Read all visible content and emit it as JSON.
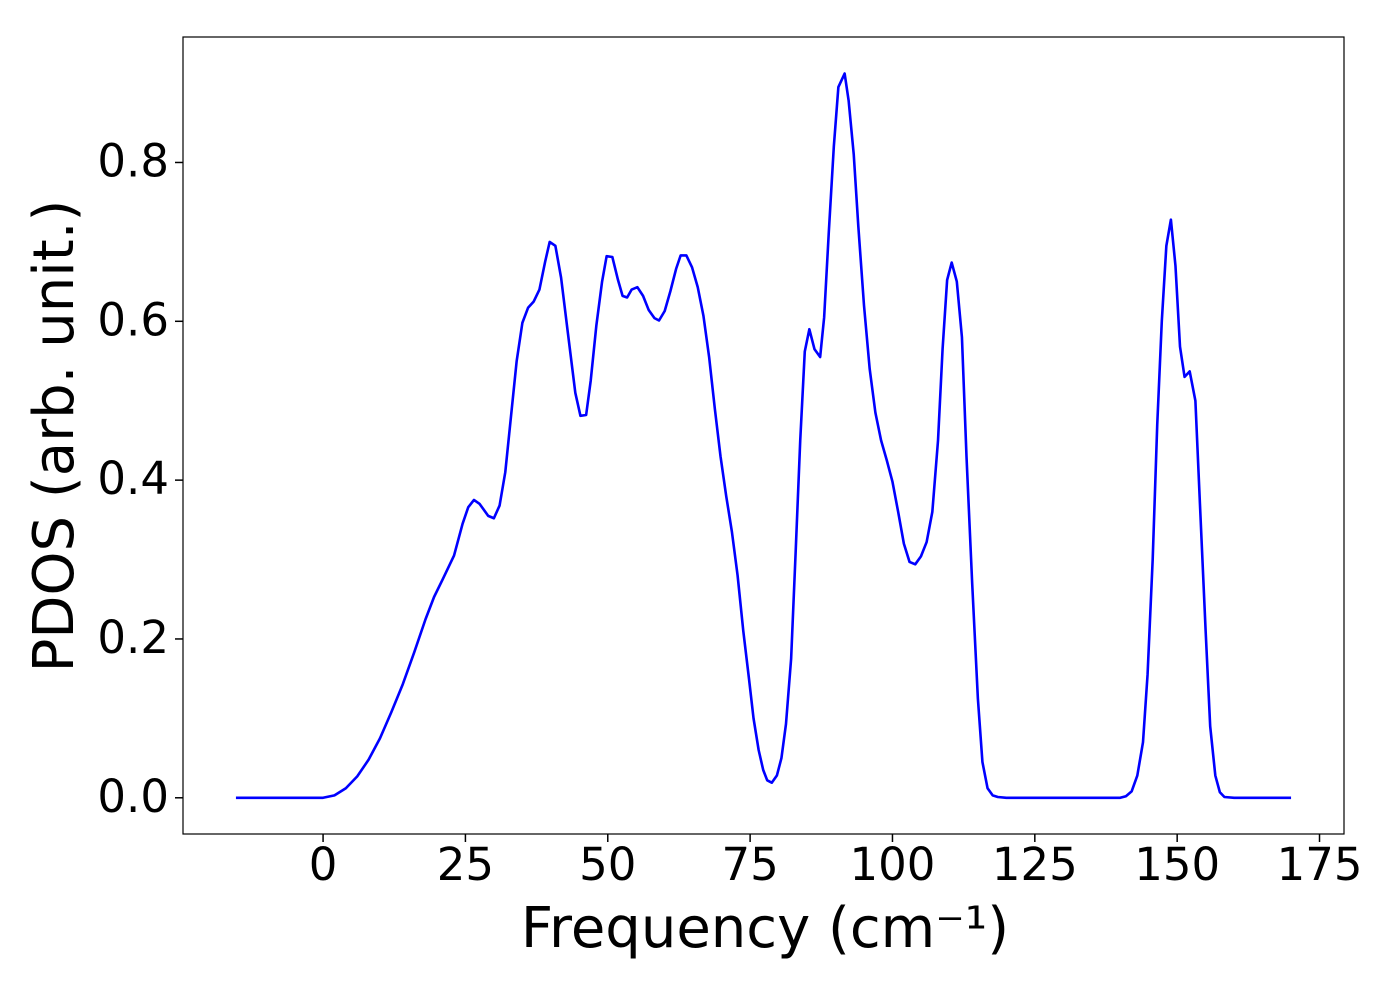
{
  "chart_data": {
    "type": "line",
    "xlabel": "Frequency (cm⁻¹)",
    "ylabel": "PDOS (arb. unit.)",
    "xlim": [
      -24.6,
      179.3
    ],
    "ylim": [
      -0.0456,
      0.958
    ],
    "xticks": [
      0,
      25,
      50,
      75,
      100,
      125,
      150,
      175
    ],
    "yticks": [
      {
        "value": 0,
        "label": "0.0"
      },
      {
        "value": 0.2,
        "label": "0.2"
      },
      {
        "value": 0.4,
        "label": "0.4"
      },
      {
        "value": 0.6,
        "label": "0.6"
      },
      {
        "value": 0.8,
        "label": "0.8"
      }
    ],
    "grid": false,
    "x": [
      -15.3,
      0,
      2,
      4,
      6,
      8,
      10,
      12,
      14,
      16,
      18,
      19.5,
      21,
      23,
      24.5,
      25.5,
      26.5,
      27.5,
      29,
      30,
      31,
      32,
      33,
      34,
      35,
      36,
      37,
      38,
      39,
      39.8,
      40.8,
      41.8,
      43,
      44.3,
      45.2,
      46.2,
      47,
      48,
      49,
      49.8,
      50.8,
      51.8,
      52.6,
      53.4,
      54.2,
      55.2,
      56.2,
      57.2,
      58.2,
      59,
      60,
      61,
      62,
      62.8,
      63.8,
      64.8,
      65.8,
      66.8,
      67.8,
      68.8,
      69.8,
      70.8,
      71.8,
      72.8,
      73.8,
      74.8,
      75.6,
      76.5,
      77.3,
      78,
      78.8,
      79.7,
      80.5,
      81.3,
      82.2,
      83,
      83.8,
      84.6,
      85.4,
      86.3,
      87.3,
      88,
      88.8,
      89.7,
      90.5,
      91.6,
      92.3,
      93.2,
      94,
      95,
      96,
      97,
      98,
      99,
      100,
      101,
      102,
      103,
      104,
      105,
      106,
      107,
      108,
      108.8,
      109.6,
      110.4,
      111.3,
      112.2,
      113,
      114,
      115,
      115.8,
      116.7,
      117.6,
      118.5,
      120,
      140,
      141,
      142,
      143,
      144,
      144.8,
      145.7,
      146.5,
      147.3,
      148.1,
      148.9,
      149.7,
      150.5,
      151.3,
      152.2,
      153.2,
      154,
      155,
      155.8,
      156.7,
      157.5,
      158.3,
      160,
      170
    ],
    "series": [
      {
        "name": "PDOS",
        "color": "#0000ff",
        "values": [
          0,
          0,
          0.003,
          0.012,
          0.027,
          0.048,
          0.075,
          0.108,
          0.143,
          0.183,
          0.225,
          0.253,
          0.275,
          0.305,
          0.345,
          0.366,
          0.375,
          0.37,
          0.355,
          0.352,
          0.368,
          0.41,
          0.48,
          0.55,
          0.598,
          0.617,
          0.625,
          0.64,
          0.675,
          0.7,
          0.695,
          0.655,
          0.585,
          0.51,
          0.481,
          0.482,
          0.525,
          0.595,
          0.65,
          0.682,
          0.681,
          0.652,
          0.632,
          0.63,
          0.64,
          0.643,
          0.632,
          0.614,
          0.604,
          0.601,
          0.613,
          0.638,
          0.666,
          0.683,
          0.683,
          0.668,
          0.643,
          0.607,
          0.555,
          0.49,
          0.43,
          0.38,
          0.335,
          0.28,
          0.21,
          0.15,
          0.1,
          0.06,
          0.035,
          0.022,
          0.019,
          0.028,
          0.05,
          0.093,
          0.175,
          0.31,
          0.45,
          0.562,
          0.59,
          0.565,
          0.555,
          0.605,
          0.71,
          0.82,
          0.895,
          0.912,
          0.878,
          0.81,
          0.72,
          0.62,
          0.54,
          0.485,
          0.45,
          0.425,
          0.398,
          0.36,
          0.32,
          0.297,
          0.294,
          0.304,
          0.322,
          0.36,
          0.45,
          0.565,
          0.652,
          0.674,
          0.65,
          0.58,
          0.43,
          0.27,
          0.125,
          0.045,
          0.012,
          0.003,
          0.001,
          0,
          0,
          0.002,
          0.008,
          0.028,
          0.07,
          0.155,
          0.3,
          0.47,
          0.6,
          0.695,
          0.728,
          0.67,
          0.568,
          0.53,
          0.537,
          0.5,
          0.37,
          0.21,
          0.09,
          0.028,
          0.007,
          0.001,
          0,
          0
        ]
      }
    ]
  }
}
